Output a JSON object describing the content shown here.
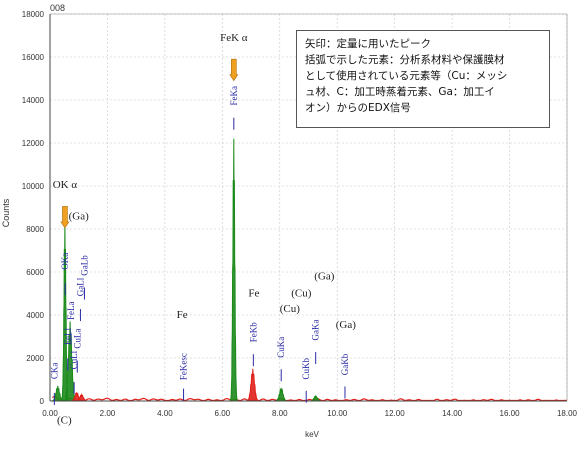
{
  "chart_data": {
    "type": "line",
    "title": "008",
    "xlabel": "keV",
    "ylabel": "Counts",
    "xlim": [
      0,
      18
    ],
    "ylim": [
      0,
      18000
    ],
    "x_ticks": [
      "0.00",
      "2.00",
      "4.00",
      "6.00",
      "8.00",
      "10.00",
      "12.00",
      "14.00",
      "16.00",
      "18.00"
    ],
    "y_ticks": [
      "0",
      "2000",
      "4000",
      "6000",
      "8000",
      "10000",
      "12000",
      "14000",
      "16000",
      "18000"
    ],
    "grid": true,
    "colors": {
      "used_peaks": "#1a8a1a",
      "other_peaks": "#e0201a",
      "labels": "#2a2aa8",
      "arrow": "#f0a020"
    },
    "peaks": [
      {
        "x": 0.27,
        "y": 700,
        "color": "green"
      },
      {
        "x": 0.52,
        "y": 8400,
        "color": "green"
      },
      {
        "x": 0.7,
        "y": 3700,
        "color": "green"
      },
      {
        "x": 0.93,
        "y": 400,
        "color": "red"
      },
      {
        "x": 1.1,
        "y": 300,
        "color": "red"
      },
      {
        "x": 6.4,
        "y": 12200,
        "color": "green"
      },
      {
        "x": 7.06,
        "y": 1500,
        "color": "red"
      },
      {
        "x": 8.05,
        "y": 600,
        "color": "green"
      },
      {
        "x": 9.25,
        "y": 230,
        "color": "green"
      }
    ],
    "peak_labels": [
      {
        "text": "CKa",
        "x": 0.15,
        "y": 1400
      },
      {
        "text": "OKa",
        "x": 0.53,
        "y": 6500
      },
      {
        "text": "FeLl",
        "x": 0.62,
        "y": 3000
      },
      {
        "text": "FeLa",
        "x": 0.73,
        "y": 4200
      },
      {
        "text": "CuLl",
        "x": 0.84,
        "y": 1900
      },
      {
        "text": "CuLa",
        "x": 0.95,
        "y": 2900
      },
      {
        "text": "GaLl",
        "x": 1.06,
        "y": 5300
      },
      {
        "text": "GaLb",
        "x": 1.2,
        "y": 6300
      },
      {
        "text": "FeKesc",
        "x": 4.65,
        "y": 1600
      },
      {
        "text": "FeKa",
        "x": 6.4,
        "y": 14200
      },
      {
        "text": "FeKb",
        "x": 7.08,
        "y": 3200
      },
      {
        "text": "CuKa",
        "x": 8.05,
        "y": 2500
      },
      {
        "text": "CuKb",
        "x": 8.92,
        "y": 1500
      },
      {
        "text": "GaKa",
        "x": 9.25,
        "y": 3300
      },
      {
        "text": "GaKb",
        "x": 10.27,
        "y": 1700
      }
    ],
    "annotations": [
      {
        "text": "FeK α",
        "x": 6.4,
        "y": 16750
      },
      {
        "text": "OK α",
        "x": 0.52,
        "y": 9900
      },
      {
        "text": "(Ga)",
        "x": 1.0,
        "y": 8450
      },
      {
        "text": "Fe",
        "x": 4.6,
        "y": 3850
      },
      {
        "text": "Fe",
        "x": 7.1,
        "y": 4850
      },
      {
        "text": "(Cu)",
        "x": 8.35,
        "y": 4150
      },
      {
        "text": "(Cu)",
        "x": 8.75,
        "y": 4850
      },
      {
        "text": "(Ga)",
        "x": 9.55,
        "y": 5650
      },
      {
        "text": "(Ga)",
        "x": 10.3,
        "y": 3400
      },
      {
        "text": "(C)",
        "x": 0.5,
        "y": -1050
      }
    ],
    "arrows": [
      {
        "x": 6.4,
        "y_top": 15900,
        "y_bottom": 14900
      },
      {
        "x": 0.52,
        "y_top": 9050,
        "y_bottom": 8050
      }
    ]
  },
  "legend_note": [
    "矢印：定量に用いたピーク",
    "括弧で示した元素：分析系材料や保護膜材",
    "として使用されている元素等（Cu：メッシ",
    "ュ材、C：加工時蒸着元素、Ga：加工イ",
    "オン）からのEDX信号"
  ]
}
